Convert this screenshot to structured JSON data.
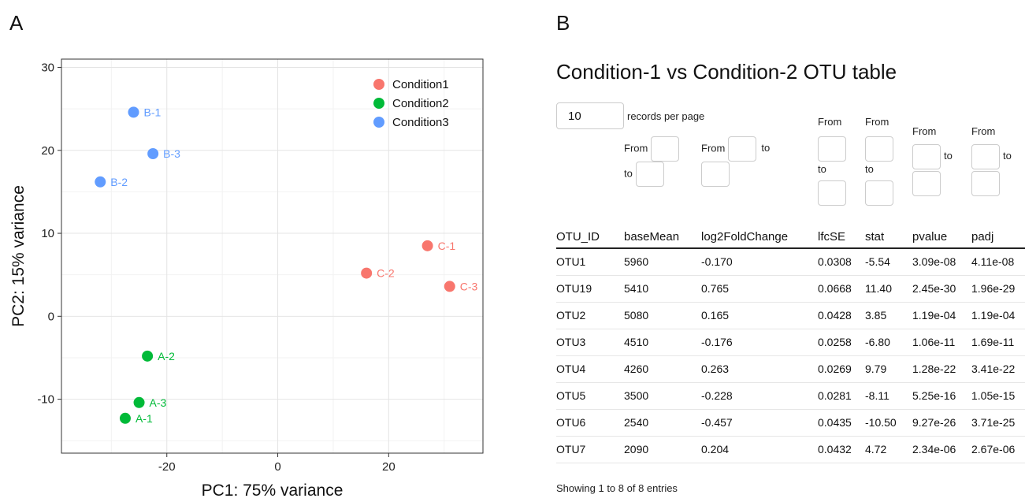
{
  "panels": {
    "a": "A",
    "b": "B"
  },
  "chart_data": {
    "type": "scatter",
    "xlabel": "PC1: 75% variance",
    "ylabel": "PC2: 15% variance",
    "xlim": [
      -39,
      37
    ],
    "ylim": [
      -16.5,
      31
    ],
    "xticks": [
      -20,
      0,
      20
    ],
    "yticks": [
      -10,
      0,
      10,
      20,
      30
    ],
    "grid": true,
    "legend_position": "top-right",
    "series": [
      {
        "name": "Condition1",
        "color": "#F8766D",
        "points": [
          {
            "label": "C-1",
            "x": 27.0,
            "y": 8.5
          },
          {
            "label": "C-2",
            "x": 16.0,
            "y": 5.2
          },
          {
            "label": "C-3",
            "x": 31.0,
            "y": 3.6
          }
        ]
      },
      {
        "name": "Condition2",
        "color": "#00BA38",
        "points": [
          {
            "label": "A-2",
            "x": -23.5,
            "y": -4.8
          },
          {
            "label": "A-3",
            "x": -25.0,
            "y": -10.4
          },
          {
            "label": "A-1",
            "x": -27.5,
            "y": -12.3
          }
        ]
      },
      {
        "name": "Condition3",
        "color": "#619CFF",
        "points": [
          {
            "label": "B-1",
            "x": -26.0,
            "y": 24.6
          },
          {
            "label": "B-3",
            "x": -22.5,
            "y": 19.6
          },
          {
            "label": "B-2",
            "x": -32.0,
            "y": 16.2
          }
        ]
      }
    ]
  },
  "table": {
    "title": "Condition-1  vs  Condition-2 OTU table",
    "page_length": "10",
    "page_length_label": "records per page",
    "filter_from": "From",
    "filter_to": "to",
    "columns": [
      "OTU_ID",
      "baseMean",
      "log2FoldChange",
      "lfcSE",
      "stat",
      "pvalue",
      "padj"
    ],
    "rows": [
      [
        "OTU1",
        "5960",
        "-0.170",
        "0.0308",
        "-5.54",
        "3.09e-08",
        "4.11e-08"
      ],
      [
        "OTU19",
        "5410",
        "0.765",
        "0.0668",
        "11.40",
        "2.45e-30",
        "1.96e-29"
      ],
      [
        "OTU2",
        "5080",
        "0.165",
        "0.0428",
        "3.85",
        "1.19e-04",
        "1.19e-04"
      ],
      [
        "OTU3",
        "4510",
        "-0.176",
        "0.0258",
        "-6.80",
        "1.06e-11",
        "1.69e-11"
      ],
      [
        "OTU4",
        "4260",
        "0.263",
        "0.0269",
        "9.79",
        "1.28e-22",
        "3.41e-22"
      ],
      [
        "OTU5",
        "3500",
        "-0.228",
        "0.0281",
        "-8.11",
        "5.25e-16",
        "1.05e-15"
      ],
      [
        "OTU6",
        "2540",
        "-0.457",
        "0.0435",
        "-10.50",
        "9.27e-26",
        "3.71e-25"
      ],
      [
        "OTU7",
        "2090",
        "0.204",
        "0.0432",
        "4.72",
        "2.34e-06",
        "2.67e-06"
      ]
    ],
    "info": "Showing 1 to 8 of 8 entries"
  }
}
